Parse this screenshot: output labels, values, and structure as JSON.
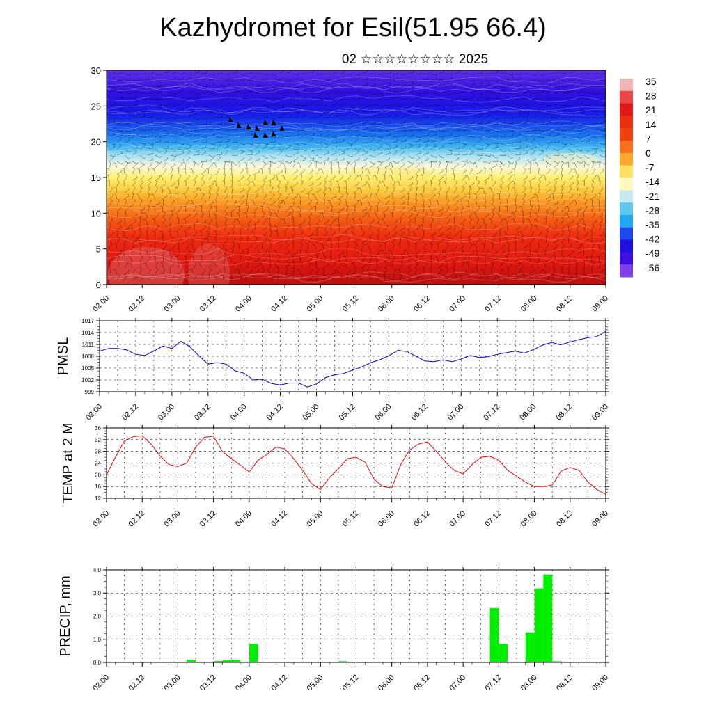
{
  "title": "Kazhydromet for Esil(51.95 66.4)",
  "subtitle": "02 ☆☆☆☆☆☆☆☆ 2025",
  "x_ticks": [
    "02.00",
    "02.12",
    "03.00",
    "03.12",
    "04.00",
    "04.12",
    "05.00",
    "05.12",
    "06.00",
    "06.12",
    "07.00",
    "07.12",
    "08.00",
    "08.12",
    "09.00"
  ],
  "colorbar": {
    "labels": [
      "35",
      "28",
      "21",
      "14",
      "7",
      "0",
      "-7",
      "-14",
      "-21",
      "-28",
      "-35",
      "-42",
      "-49",
      "-56"
    ],
    "colors": [
      "#f0b4b4",
      "#e84848",
      "#e01818",
      "#e83010",
      "#f04010",
      "#f87020",
      "#fca830",
      "#ffe060",
      "#fff8c0",
      "#c8e8f0",
      "#60c8f0",
      "#20a8f0",
      "#2048f0",
      "#2010e0",
      "#4010e0",
      "#8040e8"
    ]
  },
  "chart_data": [
    {
      "type": "heatmap",
      "name": "vertical-section",
      "title": "",
      "ylabel": "",
      "ylim": [
        0,
        30
      ],
      "y_ticks": [
        "0",
        "5",
        "10",
        "15",
        "20",
        "25",
        "30"
      ],
      "value_range": [
        -56,
        35
      ],
      "levels_description": [
        "warm (red) near surface 0-8",
        "yellow/orange 12-17",
        "cyan near 19-21",
        "blue/violet above 22"
      ]
    },
    {
      "type": "line",
      "name": "pmsl",
      "ylabel": "PMSL",
      "ylim": [
        999,
        1017
      ],
      "y_ticks": [
        "999",
        "1002",
        "1005",
        "1008",
        "1011",
        "1014",
        "1017"
      ],
      "color": "#0000dd",
      "x": [
        0,
        3,
        6,
        9,
        12,
        15,
        18,
        21,
        24,
        27,
        30,
        33,
        36,
        39,
        42,
        45,
        48,
        51,
        54,
        57,
        60,
        63,
        66,
        69,
        72,
        75,
        78,
        81,
        84,
        87,
        90,
        93,
        96,
        99,
        102,
        105,
        108,
        111,
        114,
        117,
        120,
        123,
        126,
        129,
        132,
        135,
        138,
        141,
        144,
        147,
        150,
        153,
        156,
        159,
        162,
        165,
        168
      ],
      "values": [
        1009.3,
        1010.0,
        1010.0,
        1009.6,
        1008.5,
        1008.2,
        1009.3,
        1010.6,
        1010.0,
        1011.8,
        1010.4,
        1008.1,
        1006.0,
        1006.4,
        1006.0,
        1004.3,
        1003.7,
        1002.0,
        1002.2,
        1001.1,
        1000.7,
        1001.2,
        1001.2,
        1000.2,
        1001.0,
        1002.6,
        1003.3,
        1003.6,
        1004.5,
        1005.3,
        1006.4,
        1007.1,
        1008.1,
        1009.5,
        1009.2,
        1008.0,
        1006.8,
        1006.6,
        1007.1,
        1006.6,
        1007.3,
        1008.2,
        1007.7,
        1007.9,
        1008.5,
        1008.9,
        1009.3,
        1008.8,
        1009.7,
        1010.8,
        1011.5,
        1010.9,
        1011.6,
        1012.2,
        1012.7,
        1013.0,
        1014.3
      ]
    },
    {
      "type": "line",
      "name": "temp-2m",
      "ylabel": "TEMP at 2 M",
      "ylim": [
        12,
        36
      ],
      "y_ticks": [
        "12",
        "16",
        "20",
        "24",
        "28",
        "32",
        "36"
      ],
      "color": "#ee0000",
      "x": [
        0,
        3,
        6,
        9,
        12,
        15,
        18,
        21,
        24,
        27,
        30,
        33,
        36,
        39,
        42,
        45,
        48,
        51,
        54,
        57,
        60,
        63,
        66,
        69,
        72,
        75,
        78,
        81,
        84,
        87,
        90,
        93,
        96,
        99,
        102,
        105,
        108,
        111,
        114,
        117,
        120,
        123,
        126,
        129,
        132,
        135,
        138,
        141,
        144,
        147,
        150,
        153,
        156,
        159,
        162,
        165,
        168
      ],
      "values": [
        20,
        26,
        31.5,
        33,
        33.3,
        30.5,
        26.5,
        23.5,
        22.8,
        24,
        29.5,
        32.8,
        33.2,
        28,
        25.5,
        23.3,
        21,
        25,
        27,
        29.5,
        28.8,
        25.5,
        21.5,
        17,
        15,
        19,
        22,
        25.5,
        26,
        24.3,
        18.5,
        16,
        15.5,
        23.5,
        28.5,
        30.5,
        31.2,
        28,
        24.5,
        21.5,
        20.3,
        23.5,
        26,
        26.3,
        25,
        21.5,
        19.5,
        17.5,
        16,
        16,
        16.5,
        21.3,
        22.5,
        21.5,
        17.5,
        15,
        13.3
      ]
    },
    {
      "type": "bar",
      "name": "precip",
      "ylabel": "PRECIP, mm",
      "ylim": [
        0,
        4
      ],
      "y_ticks": [
        "0.0",
        "1.0",
        "2.0",
        "3.0",
        "4.0"
      ],
      "color": "#00ee00",
      "x": [
        27,
        36,
        39,
        42,
        48,
        78,
        81,
        129,
        132,
        141,
        144,
        147,
        150
      ],
      "values": [
        0.12,
        0.06,
        0.1,
        0.12,
        0.8,
        0.05,
        0.02,
        2.35,
        0.8,
        1.3,
        3.2,
        3.8,
        0.05
      ]
    }
  ]
}
